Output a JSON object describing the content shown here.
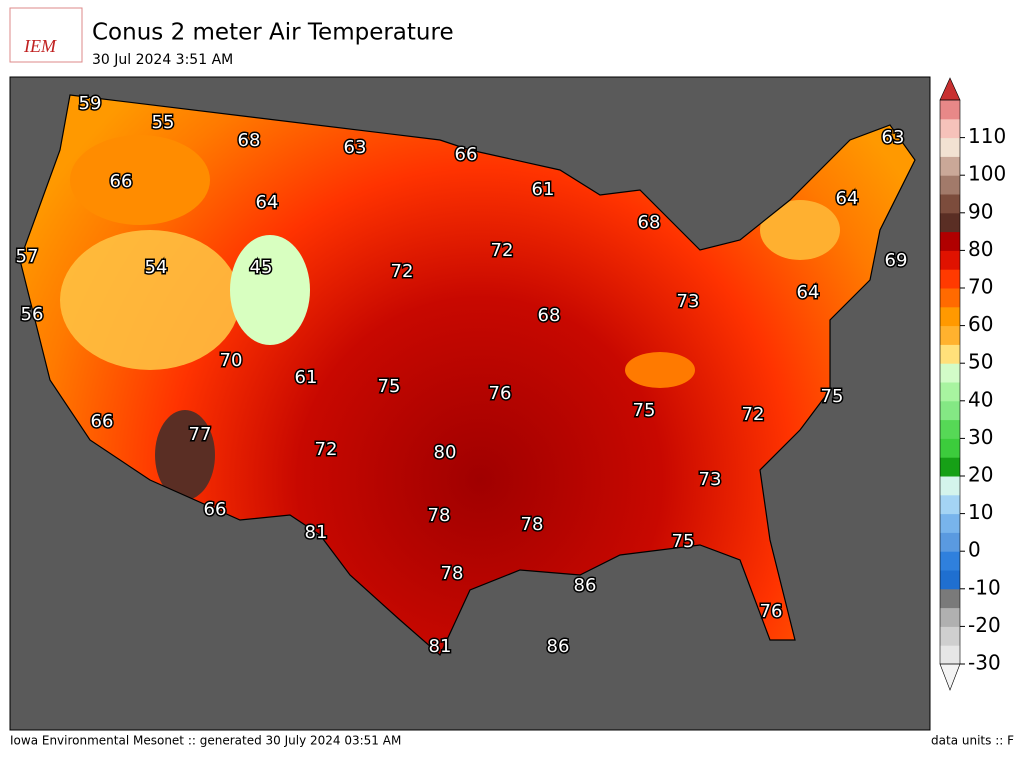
{
  "header": {
    "logo": "IEM",
    "title": "Conus 2 meter Air Temperature",
    "subtitle": "30 Jul 2024 3:51 AM"
  },
  "map": {
    "labels": [
      59,
      55,
      68,
      63,
      66,
      63,
      66,
      61,
      64,
      64,
      68,
      72,
      57,
      54,
      45,
      72,
      69,
      64,
      73,
      68,
      56,
      70,
      61,
      75,
      76,
      75,
      75,
      72,
      66,
      77,
      72,
      80,
      73,
      66,
      78,
      78,
      81,
      75,
      78,
      86,
      76,
      81,
      86
    ]
  },
  "colorbar": {
    "lim": [
      -30,
      120
    ],
    "ticks": [
      -30,
      -20,
      -10,
      0,
      10,
      20,
      30,
      40,
      50,
      60,
      70,
      80,
      90,
      100,
      110
    ],
    "colors": [
      "#e6e6e6",
      "#cfcfcf",
      "#b0b0b0",
      "#7a7a7a",
      "#1f6fd0",
      "#2f80dd",
      "#5a9ae0",
      "#78b4ec",
      "#a4d4f4",
      "#d4f4ec",
      "#16a016",
      "#3ccc3c",
      "#56d856",
      "#84e884",
      "#a8f4a0",
      "#d2fcc8",
      "#ffe07a",
      "#ffb22e",
      "#ff9900",
      "#ff6a00",
      "#ff3a00",
      "#e01200",
      "#b00000",
      "#5a2e24",
      "#7c4c3c",
      "#a27a6a",
      "#caa898",
      "#f2e2d2",
      "#f6c2ba",
      "#e88888"
    ],
    "over": "#c83030",
    "under": "#f4f4f4"
  },
  "footer": {
    "left": "Iowa Environmental Mesonet :: generated 30 July 2024 03:51 AM",
    "right": "data units :: F"
  }
}
